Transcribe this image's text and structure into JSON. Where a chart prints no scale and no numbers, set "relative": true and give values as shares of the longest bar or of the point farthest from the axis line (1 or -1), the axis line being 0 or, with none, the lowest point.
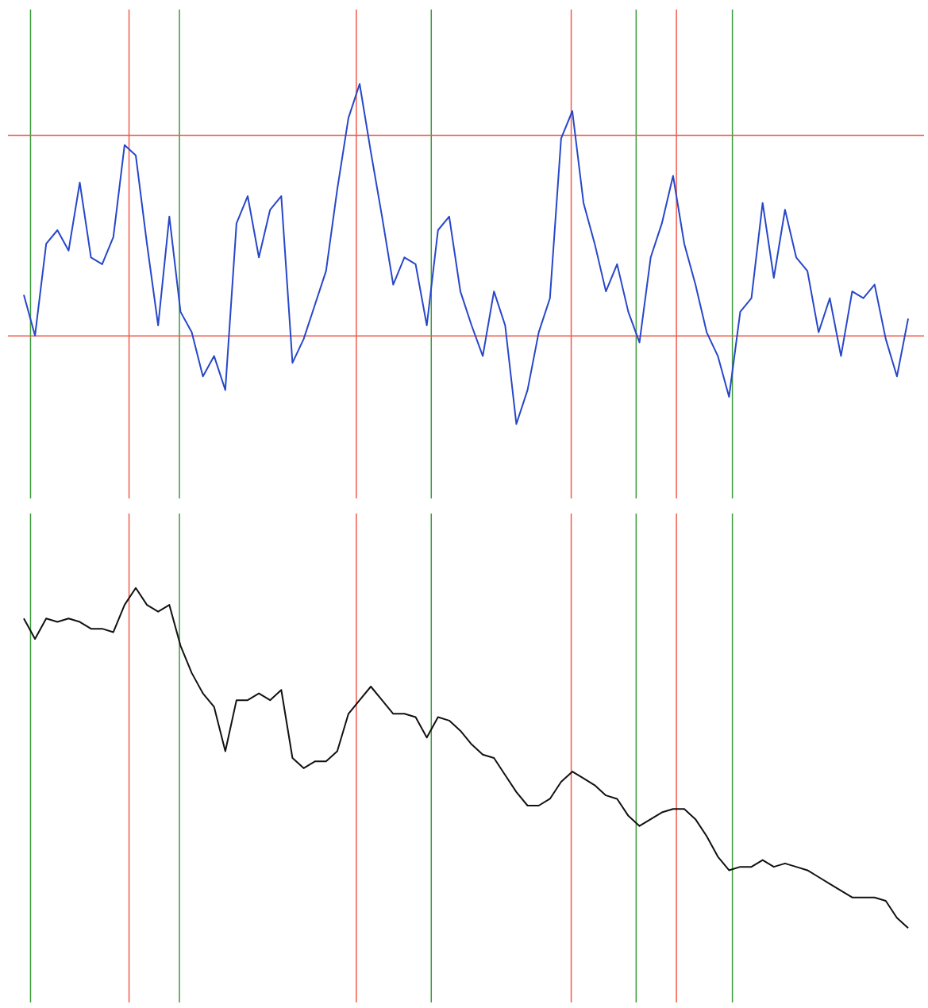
{
  "chart_data": [
    {
      "type": "line",
      "relative": true,
      "tick_labels": false,
      "legend": false,
      "marker": "none",
      "categories": [
        null,
        null,
        null,
        null,
        null,
        null,
        null,
        null,
        null,
        null,
        null,
        null,
        null,
        null,
        null,
        null,
        null,
        null,
        null,
        null,
        null,
        null,
        null,
        null,
        null,
        null,
        null,
        null,
        null,
        null,
        null,
        null,
        null,
        null,
        null,
        null,
        null,
        null,
        null,
        null,
        null,
        null,
        null,
        null,
        null,
        null,
        null,
        null,
        null,
        null,
        null,
        null,
        null,
        null,
        null,
        null,
        null,
        null,
        null,
        null,
        null,
        null,
        null,
        null,
        null,
        null,
        null,
        null,
        null,
        null,
        null,
        null,
        null,
        null,
        null,
        null,
        null,
        null,
        null,
        null
      ],
      "series": [
        {
          "color": "#2747c9",
          "values": [
            0.38,
            0.26,
            0.53,
            0.57,
            0.51,
            0.71,
            0.49,
            0.47,
            0.55,
            0.82,
            0.79,
            0.53,
            0.29,
            0.61,
            0.33,
            0.27,
            0.14,
            0.2,
            0.1,
            0.59,
            0.67,
            0.49,
            0.63,
            0.67,
            0.18,
            0.25,
            0.35,
            0.45,
            0.69,
            0.9,
            1,
            0.8,
            0.61,
            0.41,
            0.49,
            0.47,
            0.29,
            0.57,
            0.61,
            0.39,
            0.29,
            0.2,
            0.39,
            0.29,
            0,
            0.1,
            0.27,
            0.37,
            0.84,
            0.92,
            0.65,
            0.53,
            0.39,
            0.47,
            0.33,
            0.24,
            0.49,
            0.59,
            0.73,
            0.53,
            0.41,
            0.27,
            0.2,
            0.08,
            0.33,
            0.37,
            0.65,
            0.43,
            0.63,
            0.49,
            0.45,
            0.27,
            0.37,
            0.2,
            0.39,
            0.37,
            0.41,
            0.25,
            0.14,
            0.31
          ]
        }
      ],
      "ref_lines": [
        {
          "axis": "y",
          "value": 0.849,
          "color": "#f05a4a"
        },
        {
          "axis": "y",
          "value": 0.259,
          "color": "#f05a4a"
        }
      ]
    },
    {
      "type": "line",
      "relative": true,
      "tick_labels": false,
      "legend": false,
      "marker": "none",
      "categories": [
        null,
        null,
        null,
        null,
        null,
        null,
        null,
        null,
        null,
        null,
        null,
        null,
        null,
        null,
        null,
        null,
        null,
        null,
        null,
        null,
        null,
        null,
        null,
        null,
        null,
        null,
        null,
        null,
        null,
        null,
        null,
        null,
        null,
        null,
        null,
        null,
        null,
        null,
        null,
        null,
        null,
        null,
        null,
        null,
        null,
        null,
        null,
        null,
        null,
        null,
        null,
        null,
        null,
        null,
        null,
        null,
        null,
        null,
        null,
        null,
        null,
        null,
        null,
        null,
        null,
        null,
        null,
        null,
        null,
        null,
        null,
        null,
        null,
        null,
        null,
        null,
        null,
        null,
        null,
        null
      ],
      "series": [
        {
          "color": "#111111",
          "values": [
            0.91,
            0.85,
            0.91,
            0.9,
            0.91,
            0.9,
            0.88,
            0.88,
            0.87,
            0.95,
            1,
            0.95,
            0.93,
            0.95,
            0.83,
            0.75,
            0.69,
            0.65,
            0.52,
            0.67,
            0.67,
            0.69,
            0.67,
            0.7,
            0.5,
            0.47,
            0.49,
            0.49,
            0.52,
            0.63,
            0.67,
            0.71,
            0.67,
            0.63,
            0.63,
            0.62,
            0.56,
            0.62,
            0.61,
            0.58,
            0.54,
            0.51,
            0.5,
            0.45,
            0.4,
            0.36,
            0.36,
            0.38,
            0.43,
            0.46,
            0.44,
            0.42,
            0.39,
            0.38,
            0.33,
            0.3,
            0.32,
            0.34,
            0.35,
            0.35,
            0.32,
            0.27,
            0.21,
            0.17,
            0.18,
            0.18,
            0.2,
            0.18,
            0.19,
            0.18,
            0.17,
            0.15,
            0.13,
            0.11,
            0.09,
            0.09,
            0.09,
            0.08,
            0.03,
            0
          ]
        }
      ]
    }
  ]
}
